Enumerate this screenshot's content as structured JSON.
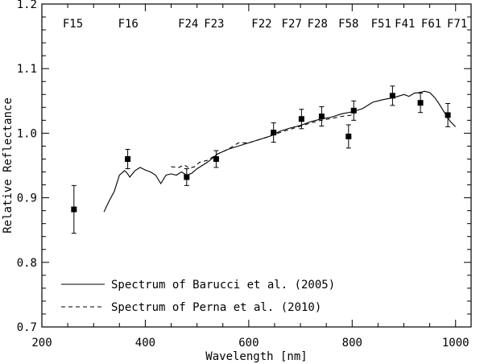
{
  "chart_data": {
    "type": "scatter",
    "title": "",
    "xlabel": "Wavelength [nm]",
    "ylabel": "Relative Reflectance",
    "xlim": [
      200,
      1030
    ],
    "ylim": [
      0.7,
      1.2
    ],
    "x_ticks": [
      200,
      400,
      600,
      800,
      1000
    ],
    "x_tick_labels": [
      "200",
      "400",
      "600",
      "800",
      "1000"
    ],
    "y_ticks": [
      0.7,
      0.8,
      0.9,
      1.0,
      1.1,
      1.2
    ],
    "y_tick_labels": [
      "0.7",
      "0.8",
      "0.9",
      "1.0",
      "1.1",
      "1.2"
    ],
    "grid": false,
    "legend_position": "bottom-left",
    "filters": [
      {
        "name": "F15",
        "wavelength": 260
      },
      {
        "name": "F16",
        "wavelength": 367
      },
      {
        "name": "F24",
        "wavelength": 483
      },
      {
        "name": "F23",
        "wavelength": 533
      },
      {
        "name": "F22",
        "wavelength": 625
      },
      {
        "name": "F27",
        "wavelength": 683
      },
      {
        "name": "F28",
        "wavelength": 733
      },
      {
        "name": "F58",
        "wavelength": 793
      },
      {
        "name": "F51",
        "wavelength": 856
      },
      {
        "name": "F41",
        "wavelength": 902
      },
      {
        "name": "F61",
        "wavelength": 953
      },
      {
        "name": "F71",
        "wavelength": 1003
      }
    ],
    "series": [
      {
        "name": "Spectrum of Barucci et al. (2005)",
        "kind": "line",
        "style": "solid",
        "x": [
          320,
          330,
          340,
          350,
          360,
          365,
          370,
          380,
          390,
          400,
          410,
          420,
          430,
          440,
          450,
          460,
          470,
          480,
          490,
          500,
          520,
          540,
          560,
          580,
          600,
          620,
          640,
          660,
          680,
          700,
          720,
          740,
          760,
          780,
          800,
          820,
          840,
          860,
          880,
          900,
          910,
          920,
          930,
          940,
          950,
          960,
          970,
          980,
          990,
          1000
        ],
        "y": [
          0.878,
          0.895,
          0.91,
          0.935,
          0.942,
          0.938,
          0.932,
          0.942,
          0.947,
          0.943,
          0.94,
          0.935,
          0.922,
          0.935,
          0.937,
          0.935,
          0.94,
          0.935,
          0.938,
          0.945,
          0.955,
          0.968,
          0.975,
          0.98,
          0.985,
          0.99,
          0.995,
          1.003,
          1.008,
          1.012,
          1.018,
          1.022,
          1.025,
          1.03,
          1.033,
          1.038,
          1.048,
          1.052,
          1.055,
          1.06,
          1.057,
          1.062,
          1.063,
          1.065,
          1.063,
          1.055,
          1.043,
          1.03,
          1.018,
          1.01
        ]
      },
      {
        "name": "Spectrum of Perna et al. (2010)",
        "kind": "line",
        "style": "dashed",
        "x": [
          450,
          465,
          475,
          485,
          495,
          505,
          520,
          540,
          560,
          580,
          600,
          620,
          640,
          660,
          680,
          700,
          720,
          740,
          760,
          780,
          800,
          805
        ],
        "y": [
          0.948,
          0.947,
          0.951,
          0.946,
          0.948,
          0.955,
          0.958,
          0.968,
          0.975,
          0.985,
          0.985,
          0.99,
          0.995,
          1.001,
          1.006,
          1.011,
          1.016,
          1.02,
          1.023,
          1.026,
          1.028,
          1.029
        ]
      },
      {
        "name": "",
        "kind": "points",
        "x": [
          262,
          366,
          480,
          537,
          648,
          702,
          741,
          793,
          803,
          878,
          932,
          985
        ],
        "y": [
          0.882,
          0.96,
          0.932,
          0.96,
          1.001,
          1.022,
          1.026,
          0.995,
          1.035,
          1.058,
          1.047,
          1.028
        ],
        "yerr": [
          0.037,
          0.015,
          0.013,
          0.013,
          0.015,
          0.015,
          0.015,
          0.018,
          0.015,
          0.015,
          0.015,
          0.018
        ]
      }
    ],
    "legend": [
      {
        "label": "Spectrum of Barucci et al. (2005)",
        "style": "solid"
      },
      {
        "label": "Spectrum of Perna et al. (2010)",
        "style": "dashed"
      }
    ]
  }
}
